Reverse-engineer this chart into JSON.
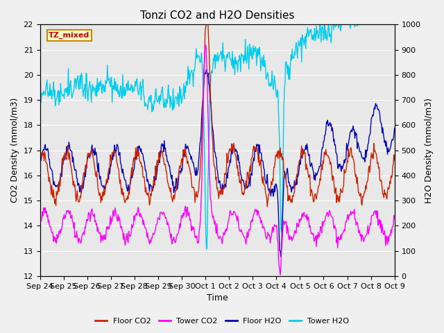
{
  "title": "Tonzi CO2 and H2O Densities",
  "xlabel": "Time",
  "ylabel_left": "CO2 Density (mmol/m3)",
  "ylabel_right": "H2O Density (mmol/m3)",
  "ylim_left": [
    12.0,
    22.0
  ],
  "ylim_right": [
    0,
    1000
  ],
  "yticks_left": [
    12.0,
    13.0,
    14.0,
    15.0,
    16.0,
    17.0,
    18.0,
    19.0,
    20.0,
    21.0,
    22.0
  ],
  "yticks_right": [
    0,
    100,
    200,
    300,
    400,
    500,
    600,
    700,
    800,
    900,
    1000
  ],
  "annotation_text": "TZ_mixed",
  "annotation_bg": "#ffffcc",
  "annotation_border": "#cc8800",
  "plot_bg": "#e8e8e8",
  "fig_bg": "#f0f0f0",
  "grid_color": "#ffffff",
  "colors": {
    "floor_co2": "#cc2200",
    "tower_co2": "#ff00ff",
    "floor_h2o": "#0000bb",
    "tower_h2o": "#00ccee"
  },
  "legend_labels": [
    "Floor CO2",
    "Tower CO2",
    "Floor H2O",
    "Tower H2O"
  ],
  "xtick_labels": [
    "Sep 24",
    "Sep 25",
    "Sep 26",
    "Sep 27",
    "Sep 28",
    "Sep 29",
    "Sep 30",
    "Oct 1",
    "Oct 2",
    "Oct 3",
    "Oct 4",
    "Oct 5",
    "Oct 6",
    "Oct 7",
    "Oct 8",
    "Oct 9"
  ],
  "n_points": 600,
  "title_fontsize": 11,
  "axis_label_fontsize": 9,
  "tick_fontsize": 8,
  "legend_fontsize": 8,
  "linewidth": 1.0
}
